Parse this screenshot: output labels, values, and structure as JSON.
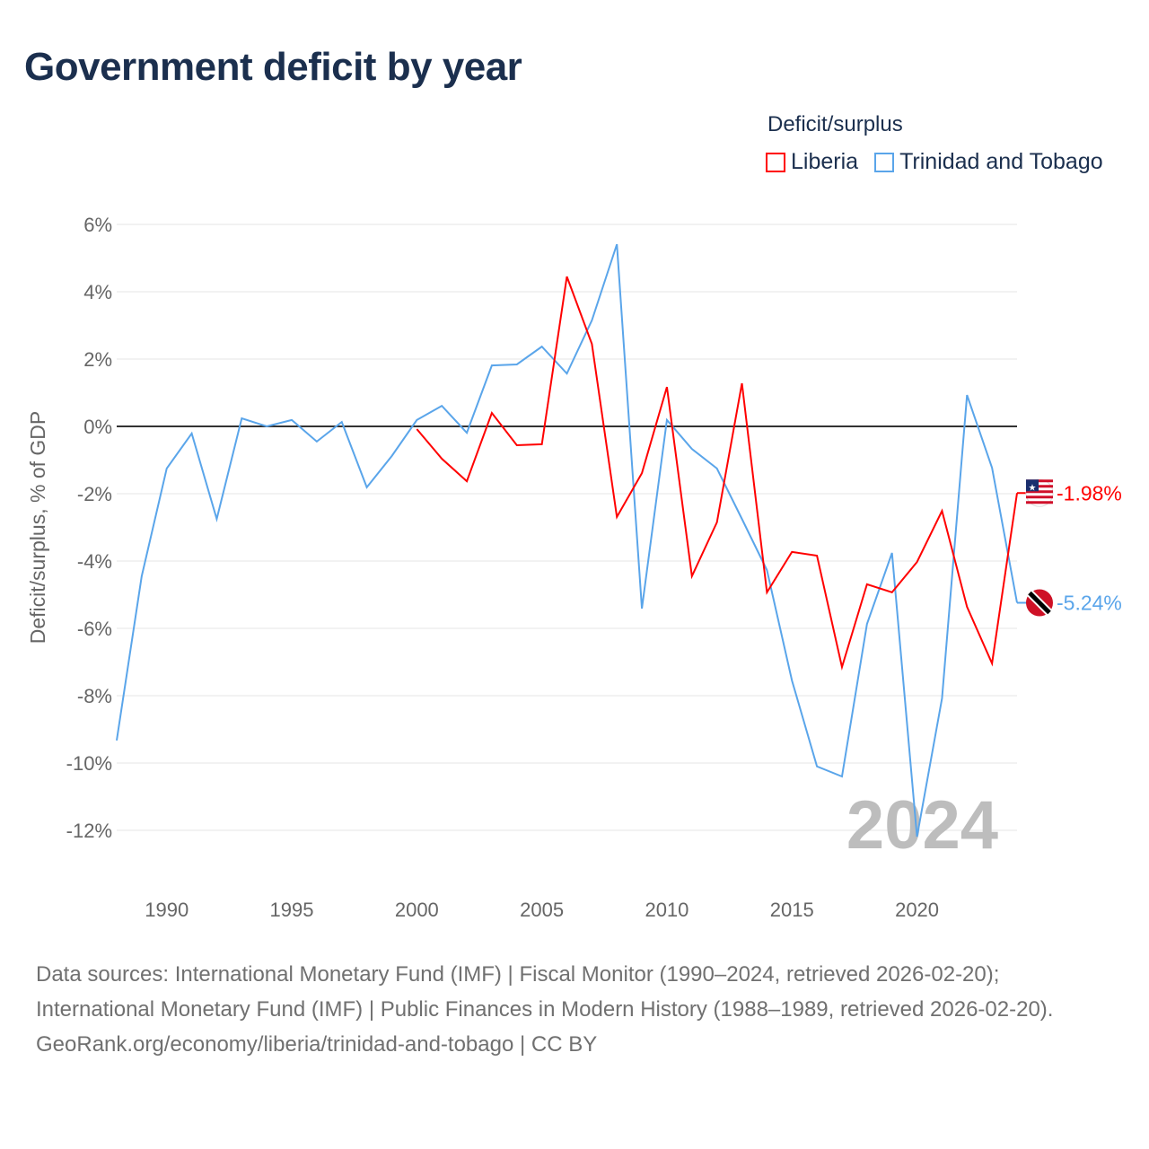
{
  "title": "Government deficit by year",
  "legend": {
    "title": "Deficit/surplus",
    "items": [
      {
        "label": "Liberia",
        "color": "#ff0000"
      },
      {
        "label": "Trinidad and Tobago",
        "color": "#5aa5ea"
      }
    ]
  },
  "chart_data": {
    "type": "line",
    "title": "Government deficit by year",
    "xlabel": "",
    "ylabel": "Deficit/surplus, % of GDP",
    "xlim": [
      1988,
      2024
    ],
    "ylim": [
      -12,
      6
    ],
    "x_ticks": [
      1990,
      1995,
      2000,
      2005,
      2010,
      2015,
      2020
    ],
    "x_tick_labels": [
      "1990",
      "1995",
      "2000",
      "2005",
      "2010",
      "2015",
      "2020"
    ],
    "y_ticks": [
      6,
      4,
      2,
      0,
      -2,
      -4,
      -6,
      -8,
      -10,
      -12
    ],
    "y_tick_labels": [
      "6%",
      "4%",
      "2%",
      "0%",
      "-2%",
      "-4%",
      "-6%",
      "-8%",
      "-10%",
      "-12%"
    ],
    "grid": true,
    "legend_position": "top-right",
    "year_watermark": "2024",
    "series": [
      {
        "name": "Liberia",
        "color": "#ff0000",
        "end_label": "-1.98%",
        "x": [
          2000,
          2001,
          2002,
          2003,
          2004,
          2005,
          2006,
          2007,
          2008,
          2009,
          2010,
          2011,
          2012,
          2013,
          2014,
          2015,
          2016,
          2017,
          2018,
          2019,
          2020,
          2021,
          2022,
          2023,
          2024
        ],
        "values": [
          -0.08,
          -0.96,
          -1.63,
          0.4,
          -0.56,
          -0.53,
          4.45,
          2.45,
          -2.69,
          -1.39,
          1.17,
          -4.45,
          -2.85,
          1.28,
          -4.93,
          -3.73,
          -3.84,
          -7.15,
          -4.69,
          -4.93,
          -4.03,
          -2.51,
          -5.36,
          -7.04,
          -1.98
        ]
      },
      {
        "name": "Trinidad and Tobago",
        "color": "#5aa5ea",
        "end_label": "-5.24%",
        "x": [
          1988,
          1989,
          1990,
          1991,
          1992,
          1993,
          1994,
          1995,
          1996,
          1997,
          1998,
          1999,
          2000,
          2001,
          2002,
          2003,
          2004,
          2005,
          2006,
          2007,
          2008,
          2009,
          2010,
          2011,
          2012,
          2013,
          2014,
          2015,
          2016,
          2017,
          2018,
          2019,
          2020,
          2021,
          2022,
          2023,
          2024
        ],
        "values": [
          -9.33,
          -4.45,
          -1.25,
          -0.21,
          -2.75,
          0.24,
          0,
          0.19,
          -0.45,
          0.13,
          -1.81,
          -0.88,
          0.19,
          0.61,
          -0.19,
          1.81,
          1.84,
          2.37,
          1.57,
          3.15,
          5.41,
          -5.41,
          0.19,
          -0.67,
          -1.25,
          -2.75,
          -4.27,
          -7.55,
          -10.1,
          -10.4,
          -5.87,
          -3.76,
          -12.19,
          -8.08,
          0.93,
          -1.23,
          -5.24
        ]
      }
    ]
  },
  "footer": {
    "sources": "Data sources: International Monetary Fund (IMF) | Fiscal Monitor (1990–2024, retrieved 2026-02-20); International Monetary Fund (IMF) | Public Finances in Modern History (1988–1989, retrieved 2026-02-20).",
    "link": "GeoRank.org/economy/liberia/trinidad-and-tobago | CC BY"
  }
}
